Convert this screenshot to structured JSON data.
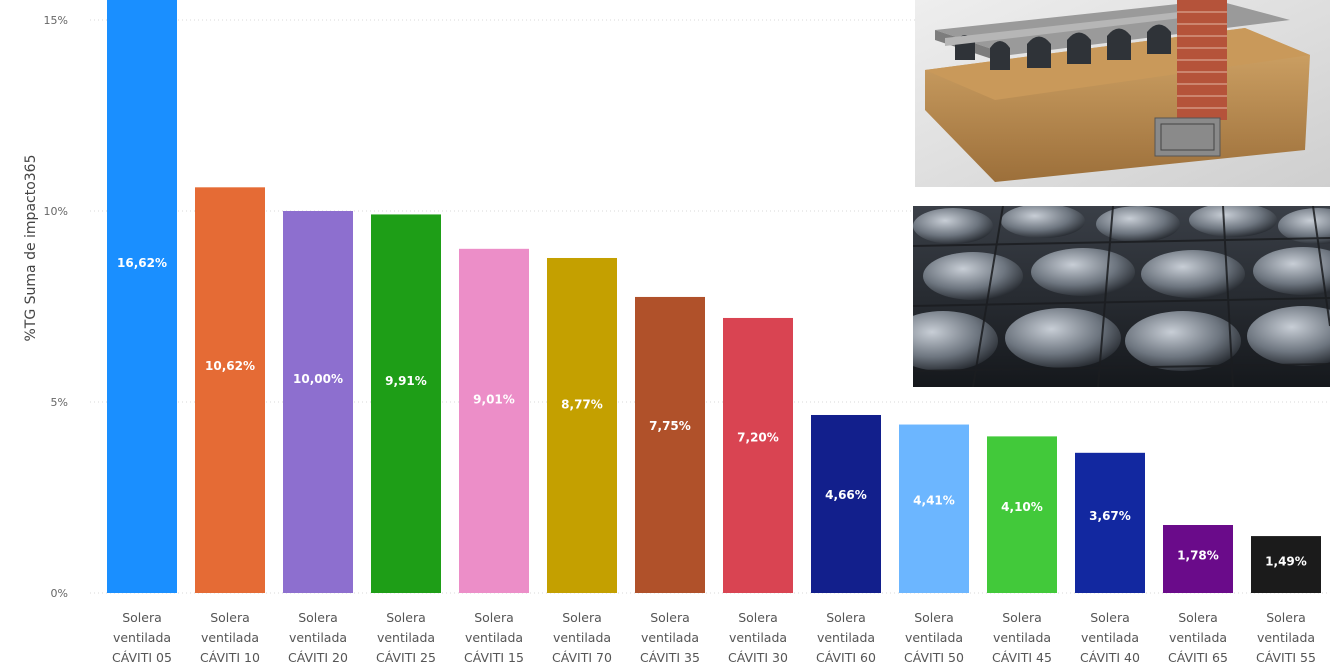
{
  "chart_data": {
    "type": "bar",
    "title": "",
    "xlabel": "",
    "ylabel": "%TG Suma de impacto365",
    "ylim": [
      0,
      15.6
    ],
    "yticks": [
      0,
      5,
      10,
      15
    ],
    "ytick_labels": [
      "0%",
      "5%",
      "10%",
      "15%"
    ],
    "grid": true,
    "categories": [
      [
        "Solera",
        "ventilada",
        "CÁVITI 05"
      ],
      [
        "Solera",
        "ventilada",
        "CÁVITI 10"
      ],
      [
        "Solera",
        "ventilada",
        "CÁVITI 20"
      ],
      [
        "Solera",
        "ventilada",
        "CÁVITI 25"
      ],
      [
        "Solera",
        "ventilada",
        "CÁVITI 15"
      ],
      [
        "Solera",
        "ventilada",
        "CÁVITI 70"
      ],
      [
        "Solera",
        "ventilada",
        "CÁVITI 35"
      ],
      [
        "Solera",
        "ventilada",
        "CÁVITI 30"
      ],
      [
        "Solera",
        "ventilada",
        "CÁVITI 60"
      ],
      [
        "Solera",
        "ventilada",
        "CÁVITI 50"
      ],
      [
        "Solera",
        "ventilada",
        "CÁVITI 45"
      ],
      [
        "Solera",
        "ventilada",
        "CÁVITI 40"
      ],
      [
        "Solera",
        "ventilada",
        "CÁVITI 65"
      ],
      [
        "Solera",
        "ventilada",
        "CÁVITI 55"
      ]
    ],
    "values": [
      16.62,
      10.62,
      10.0,
      9.91,
      9.01,
      8.77,
      7.75,
      7.2,
      4.66,
      4.41,
      4.1,
      3.67,
      1.78,
      1.49
    ],
    "data_labels": [
      "16,62%",
      "10,62%",
      "10,00%",
      "9,91%",
      "9,01%",
      "8,77%",
      "7,75%",
      "7,20%",
      "4,66%",
      "4,41%",
      "4,10%",
      "3,67%",
      "1,78%",
      "1,49%"
    ],
    "colors": [
      "#1a8fff",
      "#e56b35",
      "#8d6fcf",
      "#1e9e17",
      "#ec8ec8",
      "#c4a000",
      "#b0512a",
      "#d94452",
      "#121f8c",
      "#6cb6ff",
      "#42c93a",
      "#1228a0",
      "#6a0b8a",
      "#1b1b1b"
    ]
  },
  "images": [
    {
      "icon": "ventilated-slab-cutaway-photo"
    },
    {
      "icon": "plastic-formwork-domes-rebar-photo"
    }
  ]
}
